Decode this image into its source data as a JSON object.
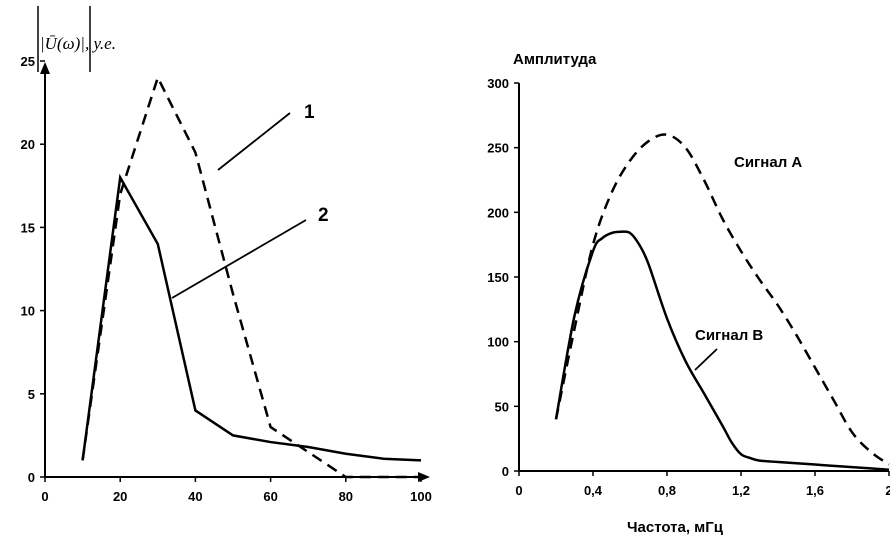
{
  "chart_data": [
    {
      "type": "line",
      "title": "",
      "ylabel": "|Ū(ω)|, у.е.",
      "xlabel": "",
      "xlim": [
        0,
        100
      ],
      "ylim": [
        0,
        25
      ],
      "x_ticks": [
        "0",
        "20",
        "40",
        "60",
        "80",
        "100"
      ],
      "y_ticks": [
        "0",
        "5",
        "10",
        "15",
        "20",
        "25"
      ],
      "grid": false,
      "series": [
        {
          "name": "1",
          "style": "dashed",
          "x": [
            10,
            20,
            30,
            40,
            50,
            60,
            70,
            80,
            90,
            100
          ],
          "y": [
            1,
            17,
            24,
            19.5,
            11,
            3,
            1.5,
            0,
            0,
            0
          ]
        },
        {
          "name": "2",
          "style": "solid",
          "x": [
            10,
            20,
            30,
            40,
            50,
            60,
            70,
            80,
            90,
            100
          ],
          "y": [
            1,
            18,
            14,
            4,
            2.5,
            2.1,
            1.8,
            1.4,
            1.1,
            1
          ]
        }
      ]
    },
    {
      "type": "line",
      "title": "",
      "ylabel": "Амплитуда",
      "xlabel": "Частота, мГц",
      "xlim": [
        0,
        2
      ],
      "ylim": [
        0,
        300
      ],
      "x_ticks": [
        "0",
        "0,4",
        "0,8",
        "1,2",
        "1,6",
        "2"
      ],
      "y_ticks": [
        "0",
        "50",
        "100",
        "150",
        "200",
        "250",
        "300"
      ],
      "grid": false,
      "series": [
        {
          "name": "Сигнал А",
          "style": "dashed",
          "x": [
            0.2,
            0.3,
            0.4,
            0.5,
            0.6,
            0.7,
            0.8,
            0.9,
            1.0,
            1.1,
            1.2,
            1.3,
            1.4,
            1.5,
            1.6,
            1.7,
            1.8,
            1.9,
            2.0
          ],
          "y": [
            40,
            110,
            175,
            215,
            240,
            255,
            260,
            250,
            225,
            195,
            170,
            148,
            128,
            105,
            80,
            55,
            30,
            15,
            5
          ]
        },
        {
          "name": "Сигнал В",
          "style": "solid",
          "x": [
            0.2,
            0.3,
            0.4,
            0.45,
            0.5,
            0.55,
            0.6,
            0.65,
            0.7,
            0.8,
            0.9,
            1.0,
            1.1,
            1.15,
            1.2,
            1.25,
            1.3,
            1.4,
            1.5,
            1.6,
            1.7,
            1.8,
            1.9,
            2.0
          ],
          "y": [
            40,
            120,
            170,
            180,
            184,
            185,
            184,
            175,
            160,
            118,
            85,
            60,
            35,
            22,
            13,
            10,
            8,
            7,
            6,
            5,
            4,
            3,
            2,
            1
          ]
        }
      ]
    }
  ]
}
